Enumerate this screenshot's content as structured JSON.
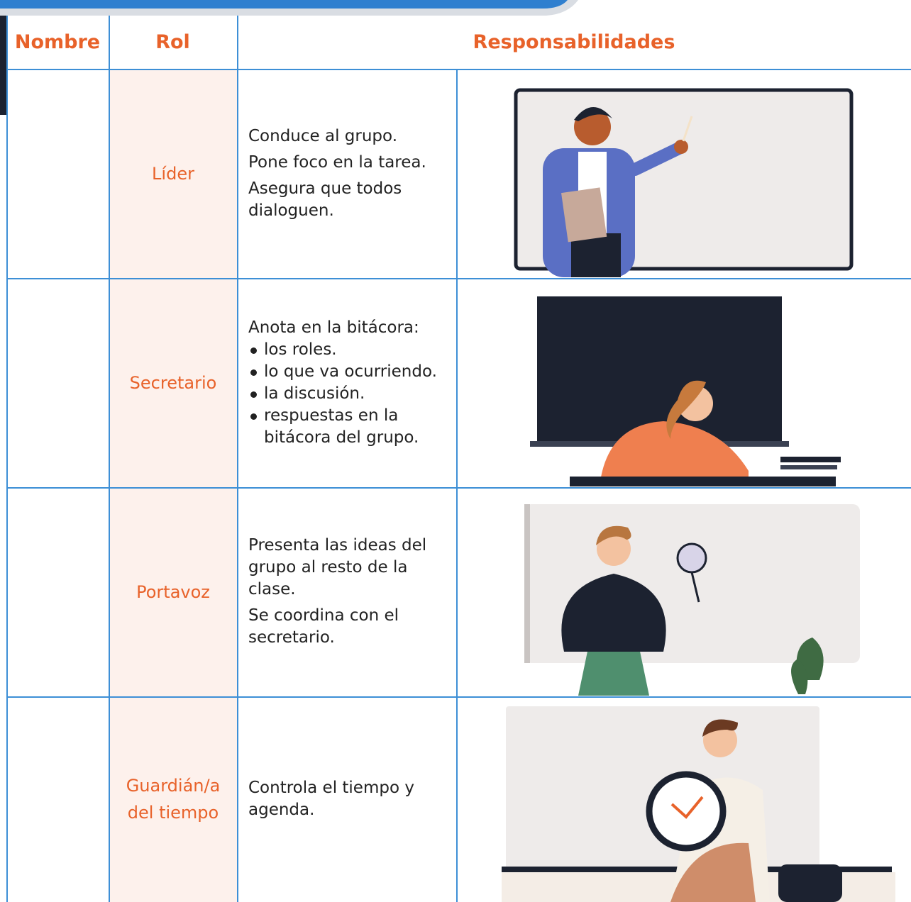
{
  "table": {
    "headers": [
      "Nombre",
      "Rol",
      "Responsabilidades"
    ],
    "rows": [
      {
        "role": "Líder",
        "paragraphs": [
          "Conduce al grupo.",
          "Pone foco en la tarea.",
          "Asegura que todos dialoguen."
        ]
      },
      {
        "role": "Secretario",
        "intro": "Anota en la bitácora:",
        "bullets": [
          "los roles.",
          "lo que va ocurriendo.",
          "la discusión.",
          "respuestas en la bitácora del grupo."
        ]
      },
      {
        "role": "Portavoz",
        "paragraphs": [
          "Presenta las ideas del grupo al resto de la clase.",
          "Se coordina con el secretario."
        ]
      },
      {
        "role": "Guardián/a del tiempo",
        "paragraphs": [
          "Controla el tiempo y agenda."
        ]
      }
    ]
  }
}
